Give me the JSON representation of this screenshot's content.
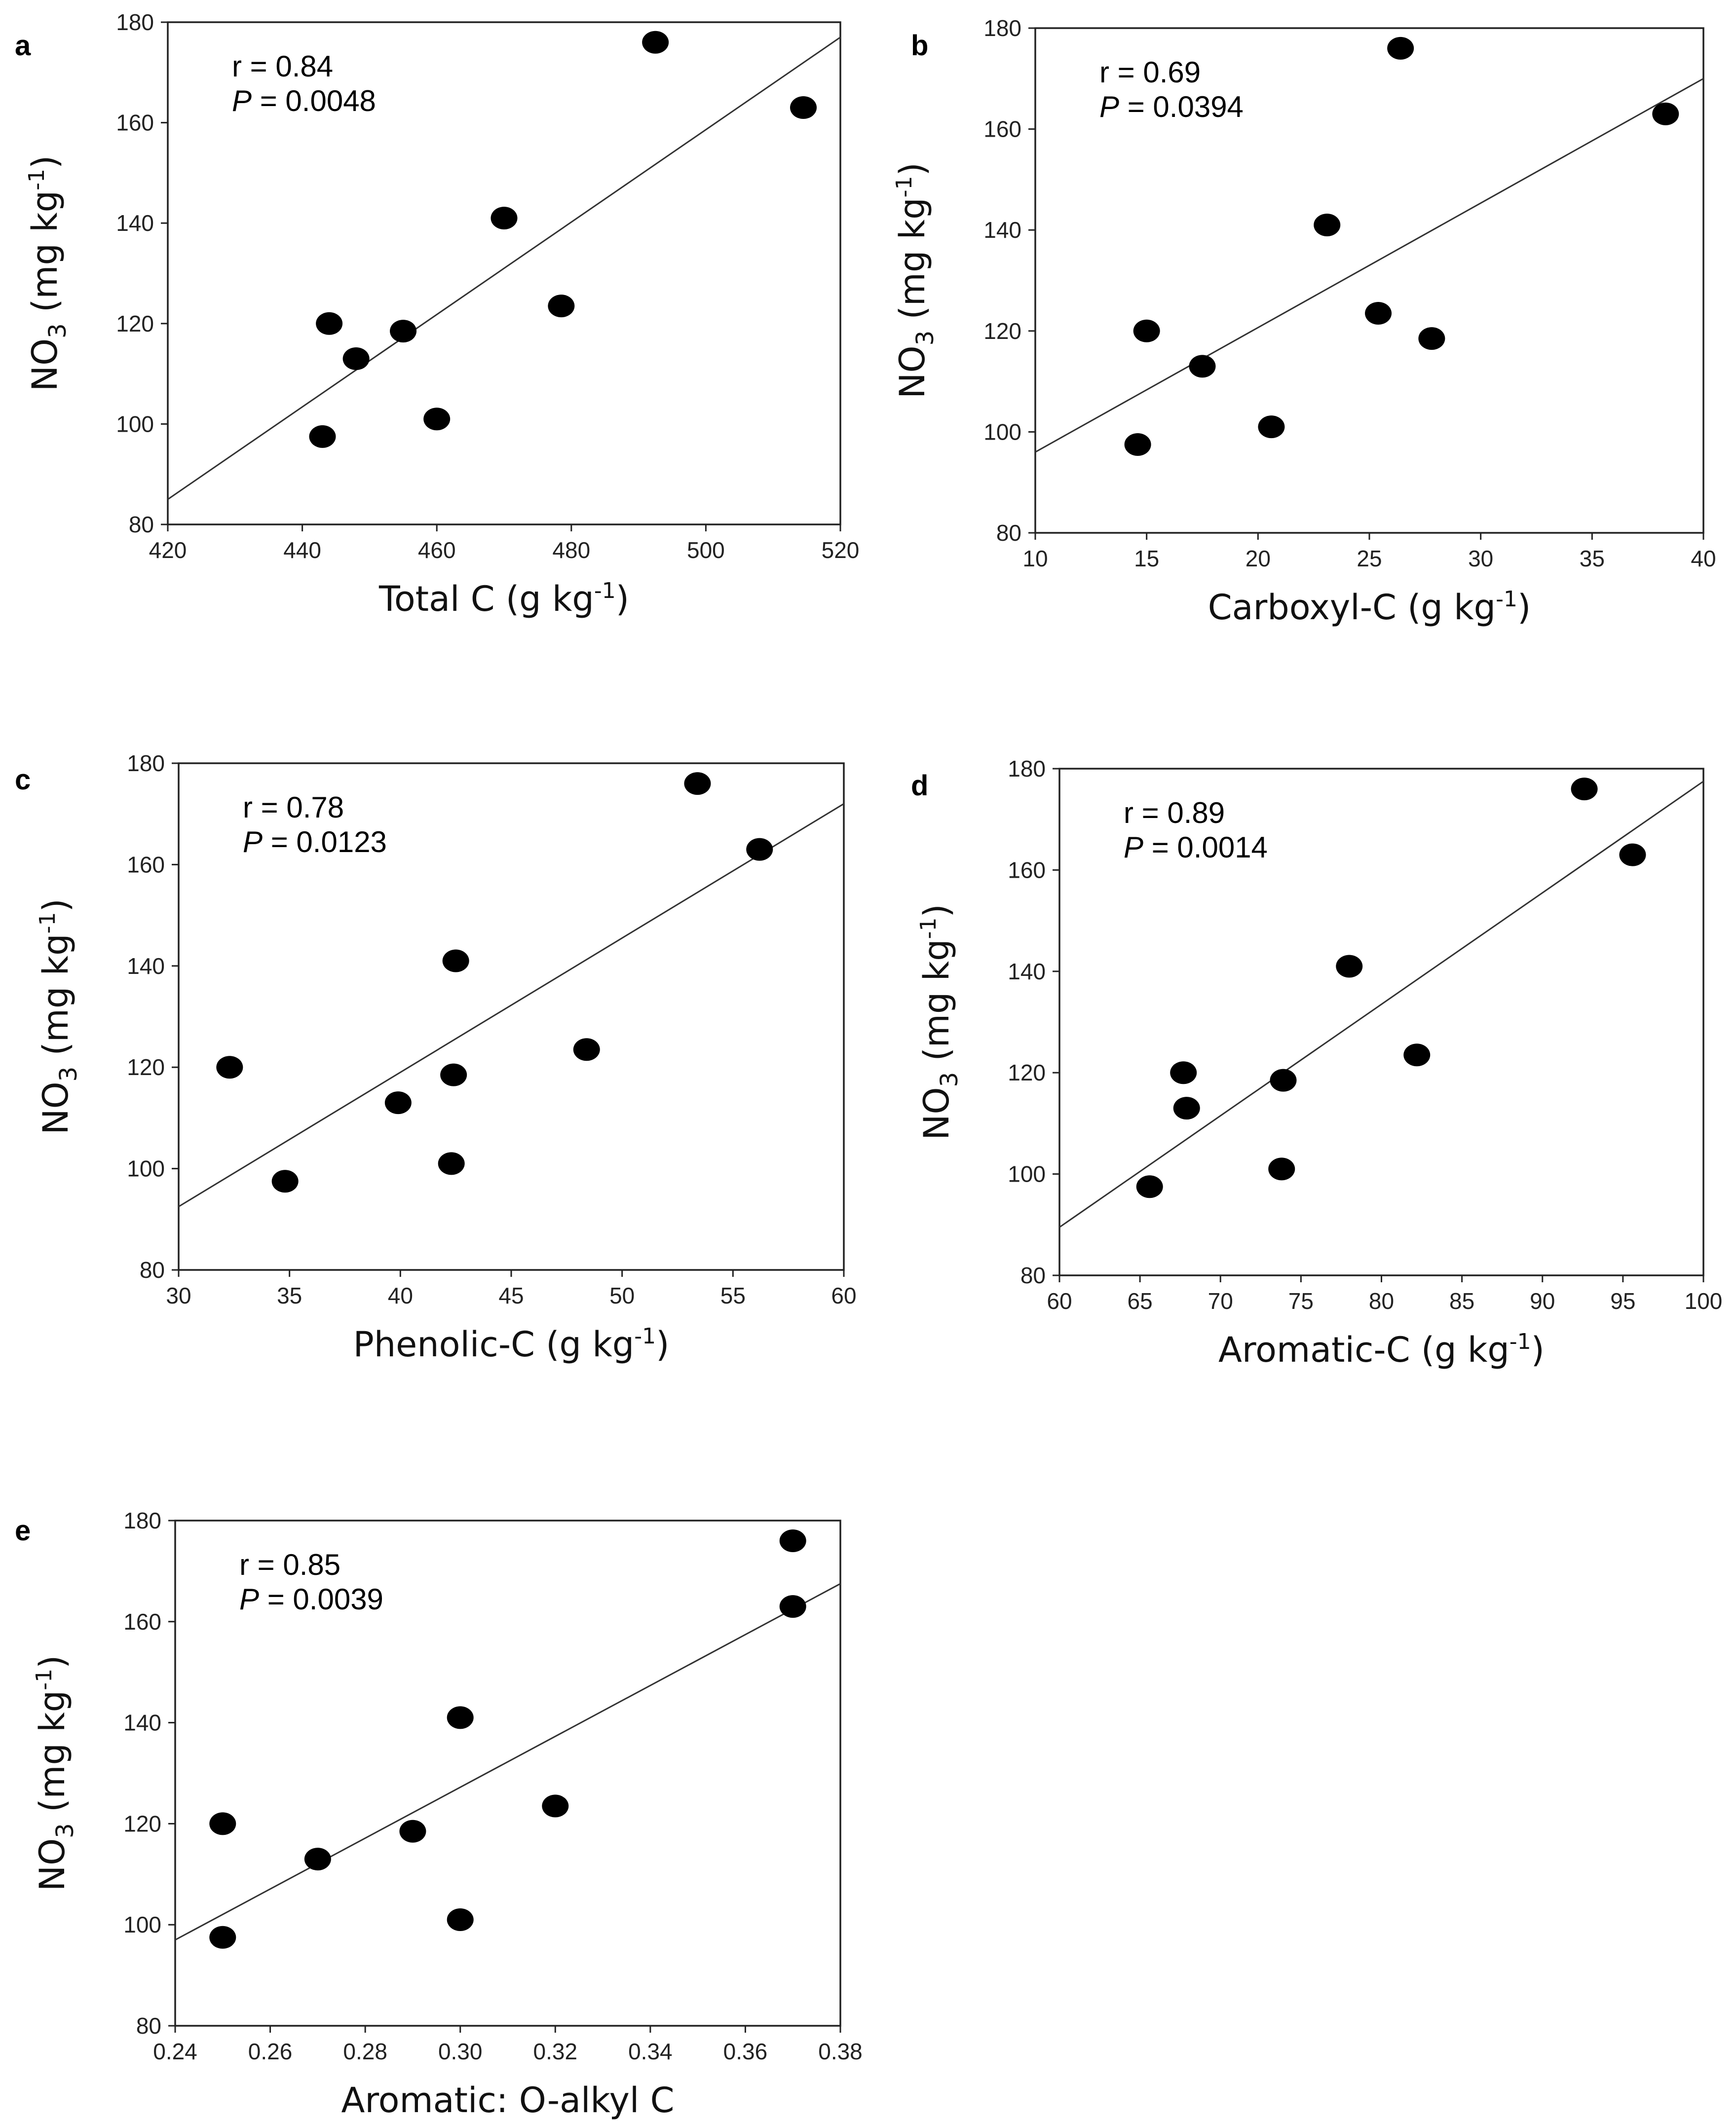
{
  "figure": {
    "y_axis_base": "NO",
    "y_axis_sub": "3",
    "y_axis_unit": "(mg kg",
    "y_axis_sup": "-1",
    "y_axis_close": ")"
  },
  "chart_data": [
    {
      "panel": "a",
      "type": "scatter",
      "xlabel": "Total C (g kg",
      "xlabel_sup": "-1",
      "xlabel_close": ")",
      "ylabel": "NO3 (mg kg-1)",
      "xlim": [
        420,
        520
      ],
      "ylim": [
        80,
        180
      ],
      "xticks": [
        "420",
        "440",
        "460",
        "480",
        "500",
        "520"
      ],
      "yticks": [
        "80",
        "100",
        "120",
        "140",
        "160",
        "180"
      ],
      "r_text": "r = 0.84",
      "p_label": "P",
      "p_text": " = 0.0048",
      "fit": [
        [
          420,
          85
        ],
        [
          520,
          177
        ]
      ],
      "points": [
        [
          443,
          97.5
        ],
        [
          444,
          120
        ],
        [
          448,
          113
        ],
        [
          455,
          118.5
        ],
        [
          460,
          101
        ],
        [
          470,
          141
        ],
        [
          478.5,
          123.5
        ],
        [
          492.5,
          176
        ],
        [
          514.5,
          163
        ]
      ]
    },
    {
      "panel": "b",
      "type": "scatter",
      "xlabel": "Carboxyl-C (g kg",
      "xlabel_sup": "-1",
      "xlabel_close": ")",
      "ylabel": "NO3 (mg kg-1)",
      "xlim": [
        10,
        40
      ],
      "ylim": [
        80,
        180
      ],
      "xticks": [
        "10",
        "15",
        "20",
        "25",
        "30",
        "35",
        "40"
      ],
      "yticks": [
        "80",
        "100",
        "120",
        "140",
        "160",
        "180"
      ],
      "r_text": "r = 0.69",
      "p_label": "P",
      "p_text": " = 0.0394",
      "fit": [
        [
          10,
          96
        ],
        [
          40,
          170
        ]
      ],
      "points": [
        [
          14.6,
          97.5
        ],
        [
          15,
          120
        ],
        [
          17.5,
          113
        ],
        [
          20.6,
          101
        ],
        [
          23.1,
          141
        ],
        [
          25.4,
          123.5
        ],
        [
          26.4,
          176
        ],
        [
          27.8,
          118.5
        ],
        [
          38.3,
          163
        ]
      ]
    },
    {
      "panel": "c",
      "type": "scatter",
      "xlabel": "Phenolic-C (g kg",
      "xlabel_sup": "-1",
      "xlabel_close": ")",
      "ylabel": "NO3 (mg kg-1)",
      "xlim": [
        30,
        60
      ],
      "ylim": [
        80,
        180
      ],
      "xticks": [
        "30",
        "35",
        "40",
        "45",
        "50",
        "55",
        "60"
      ],
      "yticks": [
        "80",
        "100",
        "120",
        "140",
        "160",
        "180"
      ],
      "r_text": "r = 0.78",
      "p_label": "P",
      "p_text": " = 0.0123",
      "fit": [
        [
          30,
          92.5
        ],
        [
          60,
          172
        ]
      ],
      "points": [
        [
          32.3,
          120
        ],
        [
          34.8,
          97.5
        ],
        [
          39.9,
          113
        ],
        [
          42.3,
          101
        ],
        [
          42.4,
          118.5
        ],
        [
          42.5,
          141
        ],
        [
          48.4,
          123.5
        ],
        [
          53.4,
          176
        ],
        [
          56.2,
          163
        ]
      ]
    },
    {
      "panel": "d",
      "type": "scatter",
      "xlabel": "Aromatic-C (g kg",
      "xlabel_sup": "-1",
      "xlabel_close": ")",
      "ylabel": "NO3 (mg kg-1)",
      "xlim": [
        60,
        100
      ],
      "ylim": [
        80,
        180
      ],
      "xticks": [
        "60",
        "65",
        "70",
        "75",
        "80",
        "85",
        "90",
        "95",
        "100"
      ],
      "yticks": [
        "80",
        "100",
        "120",
        "140",
        "160",
        "180"
      ],
      "r_text": "r = 0.89",
      "p_label": "P",
      "p_text": " = 0.0014",
      "fit": [
        [
          60,
          89.5
        ],
        [
          100,
          177.5
        ]
      ],
      "points": [
        [
          65.6,
          97.5
        ],
        [
          67.7,
          120
        ],
        [
          67.9,
          113
        ],
        [
          73.8,
          101
        ],
        [
          73.9,
          118.5
        ],
        [
          78,
          141
        ],
        [
          82.2,
          123.5
        ],
        [
          92.6,
          176
        ],
        [
          95.6,
          163
        ]
      ]
    },
    {
      "panel": "e",
      "type": "scatter",
      "xlabel": "Aromatic: O-alkyl C",
      "xlabel_sup": "",
      "xlabel_close": "",
      "ylabel": "NO3 (mg kg-1)",
      "xlim": [
        0.24,
        0.38
      ],
      "ylim": [
        80,
        180
      ],
      "xticks": [
        "0.24",
        "0.26",
        "0.28",
        "0.30",
        "0.32",
        "0.34",
        "0.36",
        "0.38"
      ],
      "yticks": [
        "80",
        "100",
        "120",
        "140",
        "160",
        "180"
      ],
      "r_text": "r = 0.85",
      "p_label": "P",
      "p_text": " = 0.0039",
      "fit": [
        [
          0.24,
          97
        ],
        [
          0.38,
          167.5
        ]
      ],
      "points": [
        [
          0.25,
          97.5
        ],
        [
          0.25,
          120
        ],
        [
          0.27,
          113
        ],
        [
          0.29,
          118.5
        ],
        [
          0.3,
          101
        ],
        [
          0.3,
          141
        ],
        [
          0.32,
          123.5
        ],
        [
          0.37,
          163
        ],
        [
          0.37,
          176
        ]
      ]
    }
  ]
}
